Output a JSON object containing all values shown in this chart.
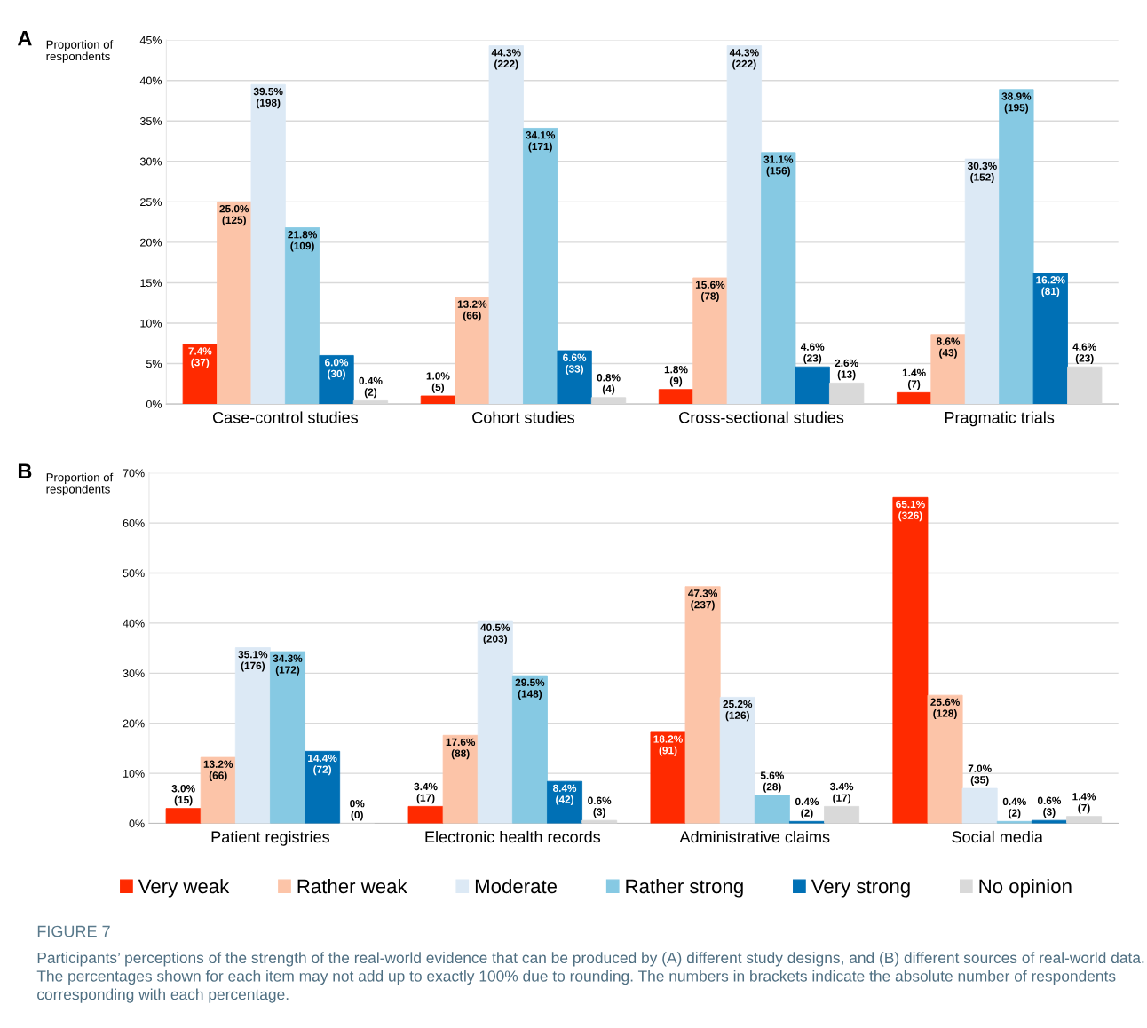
{
  "chart_data": [
    {
      "type": "bar",
      "title": "A",
      "ylabel": "Proportion of\nrespondents",
      "categories": [
        "Case-control studies",
        "Cohort studies",
        "Cross-sectional studies",
        "Pragmatic trials"
      ],
      "series": [
        {
          "color": "#ff2a00",
          "values": [
            7.4,
            1.0,
            1.8,
            1.4
          ],
          "value_labels": [
            "7.4%\n(37)",
            "1.0%\n(5)",
            "1.8%\n(9)",
            "1.4%\n(7)"
          ]
        },
        {
          "color": "#fcc4a8",
          "values": [
            25.0,
            13.2,
            15.6,
            8.6
          ],
          "value_labels": [
            "25.0%\n(125)",
            "13.2%\n(66)",
            "15.6%\n(78)",
            "8.6%\n(43)"
          ]
        },
        {
          "color": "#dce9f5",
          "values": [
            39.5,
            44.3,
            44.3,
            30.3
          ],
          "value_labels": [
            "39.5%\n(198)",
            "44.3%\n(222)",
            "44.3%\n(222)",
            "30.3%\n(152)"
          ]
        },
        {
          "color": "#86c9e3",
          "values": [
            21.8,
            34.1,
            31.1,
            38.9
          ],
          "value_labels": [
            "21.8%\n(109)",
            "34.1%\n(171)",
            "31.1%\n(156)",
            "38.9%\n(195)"
          ]
        },
        {
          "color": "#0070b5",
          "values": [
            6.0,
            6.6,
            4.6,
            16.2
          ],
          "value_labels": [
            "6.0%\n(30)",
            "6.6%\n(33)",
            "4.6%\n(23)",
            "16.2%\n(81)"
          ]
        },
        {
          "color": "#d9d9d9",
          "values": [
            0.4,
            0.8,
            2.6,
            4.6
          ],
          "value_labels": [
            "0.4%\n(2)",
            "0.8%\n(4)",
            "2.6%\n(13)",
            "4.6%\n(23)"
          ]
        }
      ],
      "ylim": [
        0,
        45
      ],
      "yticks": [
        {
          "value": 0,
          "label": "0%"
        },
        {
          "value": 5,
          "label": "5%"
        },
        {
          "value": 10,
          "label": "10%"
        },
        {
          "value": 15,
          "label": "15%"
        },
        {
          "value": 20,
          "label": "20%"
        },
        {
          "value": 25,
          "label": "25%"
        },
        {
          "value": 30,
          "label": "30%"
        },
        {
          "value": 35,
          "label": "35%"
        },
        {
          "value": 40,
          "label": "40%"
        },
        {
          "value": 45,
          "label": "45%"
        }
      ],
      "grid": "y"
    },
    {
      "type": "bar",
      "title": "B",
      "ylabel": "Proportion of\nrespondents",
      "categories": [
        "Patient registries",
        "Electronic health records",
        "Administrative claims",
        "Social media"
      ],
      "series": [
        {
          "name": "Very weak",
          "color": "#ff2a00",
          "values": [
            3.0,
            3.4,
            18.2,
            65.1
          ],
          "value_labels": [
            "3.0%\n(15)",
            "3.4%\n(17)",
            "18.2%\n(91)",
            "65.1%\n(326)"
          ]
        },
        {
          "name": "Rather weak",
          "color": "#fcc4a8",
          "values": [
            13.2,
            17.6,
            47.3,
            25.6
          ],
          "value_labels": [
            "13.2%\n(66)",
            "17.6%\n(88)",
            "47.3%\n(237)",
            "25.6%\n(128)"
          ]
        },
        {
          "name": "Moderate",
          "color": "#dce9f5",
          "values": [
            35.1,
            40.5,
            25.2,
            7.0
          ],
          "value_labels": [
            "35.1%\n(176)",
            "40.5%\n(203)",
            "25.2%\n(126)",
            "7.0%\n(35)"
          ]
        },
        {
          "name": "Rather strong",
          "color": "#86c9e3",
          "values": [
            34.3,
            29.5,
            5.6,
            0.4
          ],
          "value_labels": [
            "34.3%\n(172)",
            "29.5%\n(148)",
            "5.6%\n(28)",
            "0.4%\n(2)"
          ]
        },
        {
          "name": "Very strong",
          "color": "#0070b5",
          "values": [
            14.4,
            8.4,
            0.4,
            0.6
          ],
          "value_labels": [
            "14.4%\n(72)",
            "8.4%\n(42)",
            "0.4%\n(2)",
            "0.6%\n(3)"
          ]
        },
        {
          "name": "No opinion",
          "color": "#d9d9d9",
          "values": [
            0,
            0.6,
            3.4,
            1.4
          ],
          "value_labels": [
            "0%\n(0)",
            "0.6%\n(3)",
            "3.4%\n(17)",
            "1.4%\n(7)"
          ]
        }
      ],
      "ylim": [
        0,
        70
      ],
      "yticks": [
        {
          "value": 0,
          "label": "0%"
        },
        {
          "value": 10,
          "label": "10%"
        },
        {
          "value": 20,
          "label": "20%"
        },
        {
          "value": 30,
          "label": "30%"
        },
        {
          "value": 40,
          "label": "40%"
        },
        {
          "value": 50,
          "label": "50%"
        },
        {
          "value": 60,
          "label": "60%"
        },
        {
          "value": 70,
          "label": "70%"
        }
      ],
      "grid": "y",
      "legend": "bottom",
      "annotations": [
        "FIGURE 7",
        "Participants’ perceptions of the strength of the real-world evidence that can be produced by (A) different study designs, and (B) different sources of real-world data. The percentages shown for each item may not add up to exactly 100% due to rounding. The numbers in brackets indicate the absolute number of respondents corresponding with each percentage."
      ]
    }
  ]
}
